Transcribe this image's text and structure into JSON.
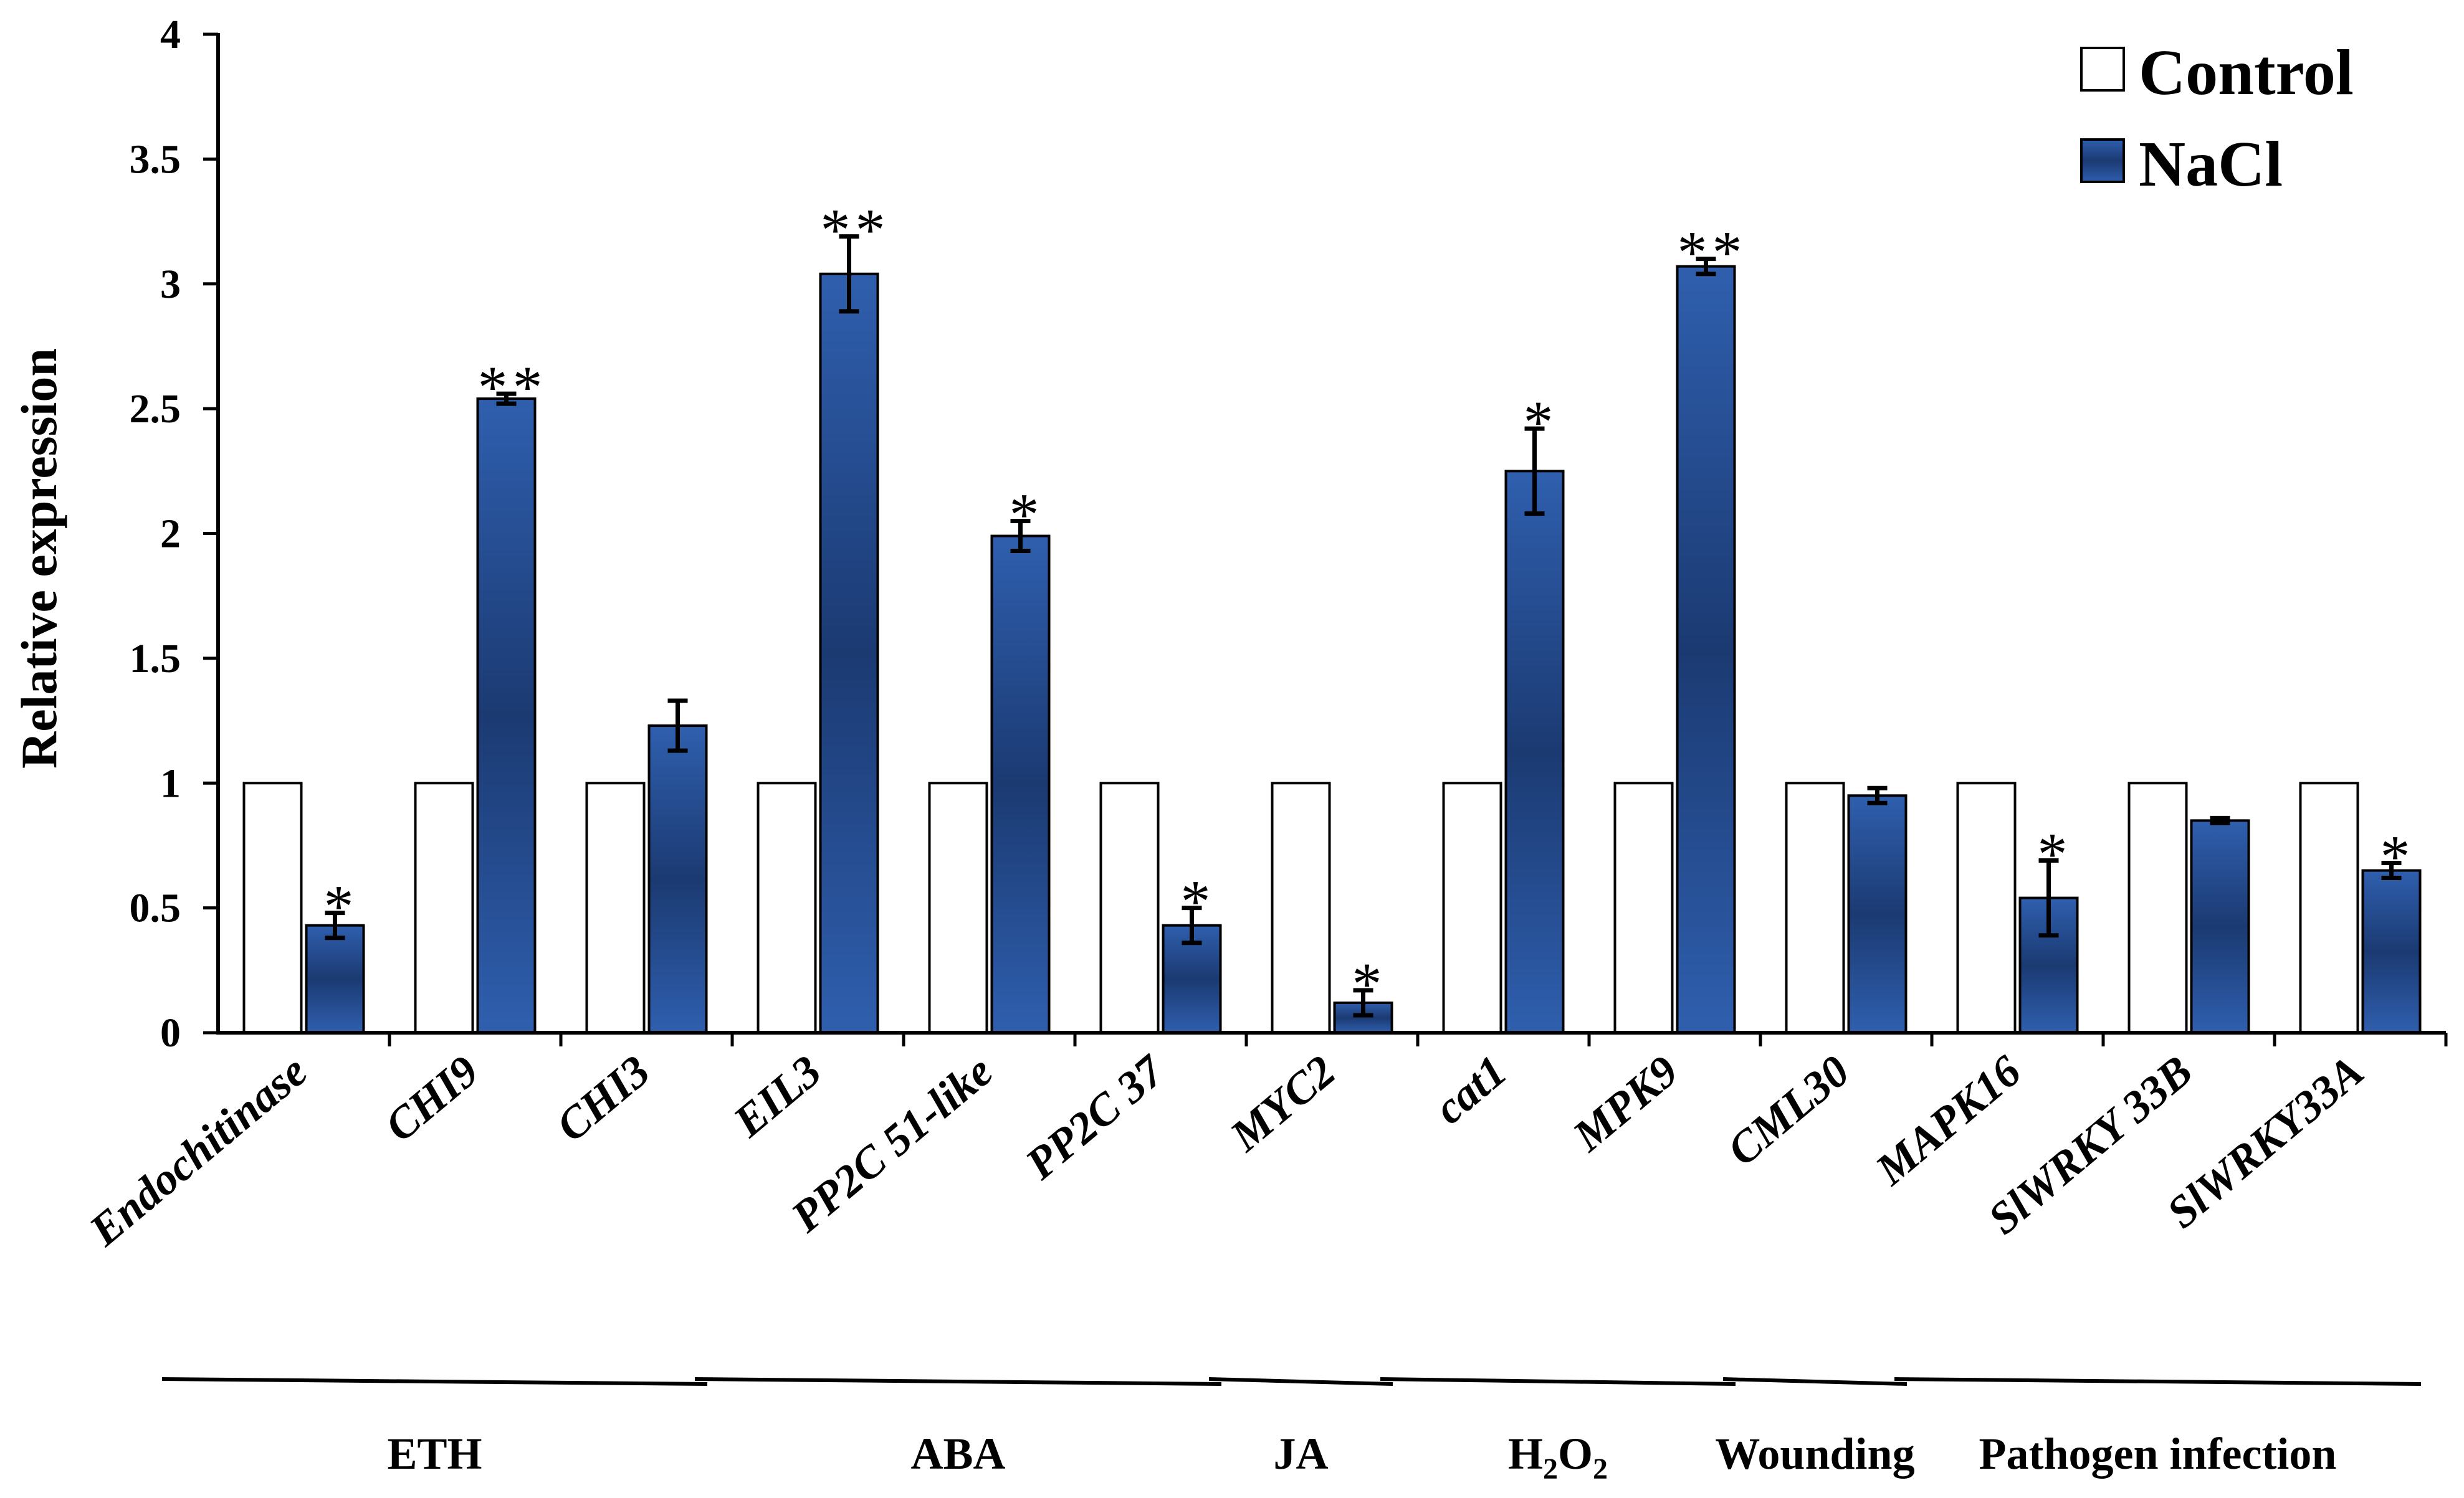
{
  "chart_data": {
    "type": "bar",
    "title": "",
    "xlabel": "",
    "ylabel": "Relative expression",
    "ylim": [
      0,
      4
    ],
    "yticks": [
      "0",
      "0.5",
      "1",
      "1.5",
      "2",
      "2.5",
      "3",
      "3.5",
      "4"
    ],
    "categories": [
      "Endochitinase",
      "CHI9",
      "CHI3",
      "EIL3",
      "PP2C 51-like",
      "PP2C 37",
      "MYC2",
      "cat1",
      "MPK9",
      "CML30",
      "MAPK16",
      "SlWRKY 33B",
      "SlWRKY33A"
    ],
    "series": [
      {
        "name": "Control",
        "color": "#ffffff",
        "values": [
          1,
          1,
          1,
          1,
          1,
          1,
          1,
          1,
          1,
          1,
          1,
          1,
          1
        ],
        "errors": [
          0,
          0,
          0,
          0,
          0,
          0,
          0,
          0,
          0,
          0,
          0,
          0,
          0
        ]
      },
      {
        "name": "NaCl",
        "color": "#2a55a0",
        "values": [
          0.43,
          2.54,
          1.23,
          3.04,
          1.99,
          0.43,
          0.12,
          2.25,
          3.07,
          0.95,
          0.54,
          0.85,
          0.65
        ],
        "errors": [
          0.05,
          0.02,
          0.1,
          0.15,
          0.06,
          0.07,
          0.05,
          0.17,
          0.03,
          0.03,
          0.15,
          0.01,
          0.03
        ],
        "significance": [
          "*",
          "**",
          "",
          "**",
          "*",
          "*",
          "*",
          "*",
          "**",
          "",
          "*",
          "",
          "*"
        ]
      }
    ],
    "groups": [
      {
        "label": "ETH",
        "sub": "",
        "tail": "",
        "from": 0,
        "to": 2
      },
      {
        "label": "ABA",
        "sub": "",
        "tail": "",
        "from": 3,
        "to": 5
      },
      {
        "label": "JA",
        "sub": "",
        "tail": "",
        "from": 6,
        "to": 6
      },
      {
        "label": "H",
        "sub": "2",
        "tail": "O",
        "sub2": "2",
        "from": 7,
        "to": 8
      },
      {
        "label": "Wounding",
        "sub": "",
        "tail": "",
        "from": 9,
        "to": 9
      },
      {
        "label": "Pathogen infection",
        "sub": "",
        "tail": "",
        "from": 10,
        "to": 12
      }
    ],
    "legend": {
      "position": "top-right",
      "entries": [
        "Control",
        "NaCl"
      ]
    }
  }
}
